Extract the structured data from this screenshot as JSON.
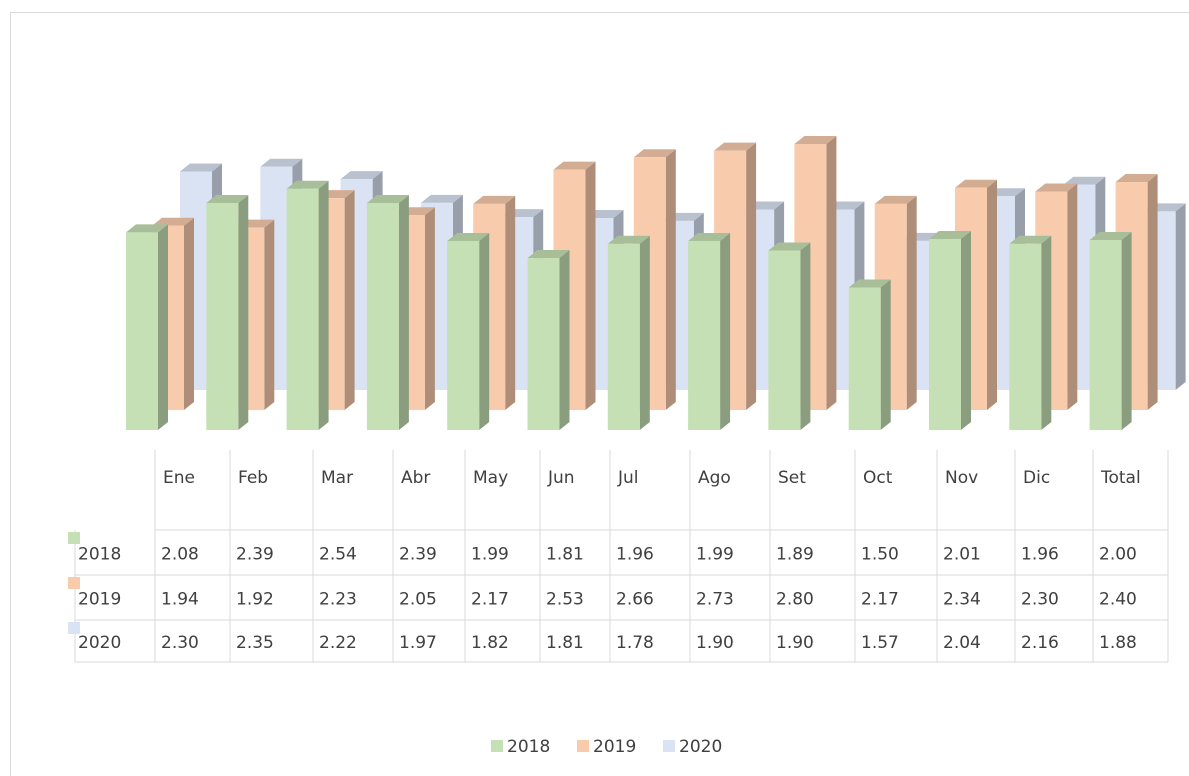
{
  "chart_data": {
    "type": "bar3d",
    "categories": [
      "Ene",
      "Feb",
      "Mar",
      "Abr",
      "May",
      "Jun",
      "Jul",
      "Ago",
      "Set",
      "Oct",
      "Nov",
      "Dic",
      "Total"
    ],
    "series": [
      {
        "name": "2018",
        "color": "#c5e0b4",
        "values": [
          2.08,
          2.39,
          2.54,
          2.39,
          1.99,
          1.81,
          1.96,
          1.99,
          1.89,
          1.5,
          2.01,
          1.96,
          2.0
        ],
        "value_labels": [
          "2.08",
          "2.39",
          "2.54",
          "2.39",
          "1.99",
          "1.81",
          "1.96",
          "1.99",
          "1.89",
          "1.50",
          "2.01",
          "1.96",
          "2.00"
        ]
      },
      {
        "name": "2019",
        "color": "#f8cbad",
        "values": [
          1.94,
          1.92,
          2.23,
          2.05,
          2.17,
          2.53,
          2.66,
          2.73,
          2.8,
          2.17,
          2.34,
          2.3,
          2.4
        ],
        "value_labels": [
          "1.94",
          "1.92",
          "2.23",
          "2.05",
          "2.17",
          "2.53",
          "2.66",
          "2.73",
          "2.80",
          "2.17",
          "2.34",
          "2.30",
          "2.40"
        ]
      },
      {
        "name": "2020",
        "color": "#dae3f3",
        "values": [
          2.3,
          2.35,
          2.22,
          1.97,
          1.82,
          1.81,
          1.78,
          1.9,
          1.9,
          1.57,
          2.04,
          2.16,
          1.88
        ],
        "value_labels": [
          "2.30",
          "2.35",
          "2.22",
          "1.97",
          "1.82",
          "1.81",
          "1.78",
          "1.90",
          "1.90",
          "1.57",
          "2.04",
          "2.16",
          "1.88"
        ]
      }
    ],
    "legend": "bottom"
  }
}
